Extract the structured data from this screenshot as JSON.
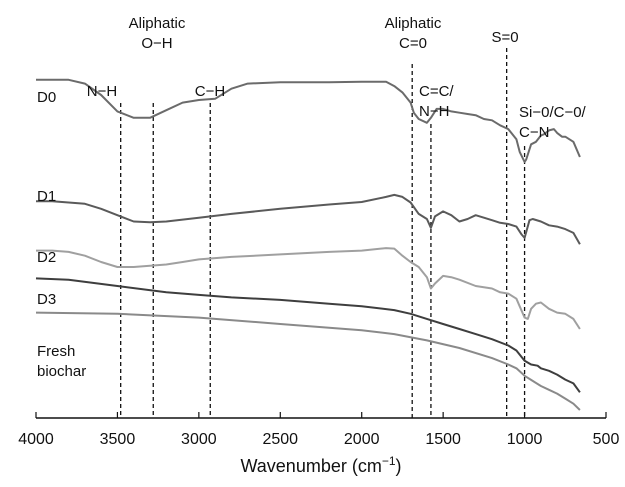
{
  "chart_data": {
    "type": "line",
    "title": "",
    "xlabel": {
      "main": "Wavenumber (cm",
      "superscript": "−1",
      "close": ")"
    },
    "ylabel": "",
    "xlim": [
      4000,
      500
    ],
    "x_reversed": true,
    "x_ticks": [
      4000,
      3500,
      3000,
      2500,
      2000,
      1500,
      1000,
      500
    ],
    "y_ticks": [],
    "grid": false,
    "annotations": [
      {
        "id": "nh",
        "x": 3480,
        "lines": [
          "N−H"
        ]
      },
      {
        "id": "oh",
        "x": 3280,
        "lines": [
          "Aliphatic",
          "O−H"
        ]
      },
      {
        "id": "ch",
        "x": 2930,
        "lines": [
          "C−H"
        ]
      },
      {
        "id": "co",
        "x": 1690,
        "lines": [
          "Aliphatic",
          "C=0"
        ]
      },
      {
        "id": "ccnh",
        "x": 1575,
        "lines": [
          "C=C/",
          "N−H"
        ]
      },
      {
        "id": "so",
        "x": 1110,
        "lines": [
          "S=0"
        ]
      },
      {
        "id": "sico",
        "x": 1000,
        "lines": [
          "Si−0/C−0/",
          "C−N"
        ]
      }
    ],
    "series": [
      {
        "name": "D0",
        "label_lines": [
          "D0"
        ],
        "color": "#6b6b6b",
        "x": [
          4000,
          3800,
          3700,
          3600,
          3500,
          3400,
          3300,
          3200,
          3100,
          3000,
          2900,
          2800,
          2700,
          2500,
          2200,
          2000,
          1850,
          1800,
          1750,
          1700,
          1680,
          1650,
          1600,
          1575,
          1540,
          1500,
          1450,
          1400,
          1350,
          1300,
          1250,
          1200,
          1150,
          1100,
          1050,
          1030,
          1000,
          990,
          960,
          930,
          900,
          880,
          850,
          820,
          800,
          770,
          750,
          700,
          660
        ],
        "y": [
          0.15,
          0.15,
          0.3,
          0.75,
          1.4,
          1.65,
          1.65,
          1.35,
          1.05,
          0.95,
          0.9,
          0.5,
          0.3,
          0.25,
          0.25,
          0.23,
          0.23,
          0.4,
          0.65,
          1.05,
          1.45,
          1.7,
          1.85,
          1.65,
          1.3,
          1.3,
          1.4,
          1.45,
          1.5,
          1.55,
          1.7,
          1.75,
          1.95,
          2.1,
          2.5,
          3.0,
          3.4,
          3.3,
          2.7,
          2.6,
          2.35,
          2.3,
          2.15,
          2.1,
          2.25,
          2.4,
          2.4,
          2.6,
          3.2
        ]
      },
      {
        "name": "D1",
        "label_lines": [
          "D1"
        ],
        "color": "#5a5a5a",
        "x": [
          4000,
          3900,
          3700,
          3600,
          3500,
          3400,
          3300,
          3200,
          3000,
          2800,
          2500,
          2200,
          2000,
          1850,
          1800,
          1750,
          1700,
          1650,
          1600,
          1575,
          1550,
          1500,
          1450,
          1400,
          1350,
          1300,
          1250,
          1200,
          1150,
          1100,
          1050,
          1020,
          1000,
          970,
          950,
          900,
          850,
          800,
          750,
          700,
          660
        ],
        "y": [
          4.95,
          4.95,
          5.05,
          5.25,
          5.5,
          5.75,
          5.78,
          5.75,
          5.6,
          5.45,
          5.25,
          5.08,
          4.98,
          4.78,
          4.7,
          4.78,
          5.0,
          5.45,
          5.65,
          6.0,
          5.55,
          5.35,
          5.5,
          5.75,
          5.65,
          5.5,
          5.6,
          5.7,
          5.8,
          5.85,
          5.95,
          6.25,
          6.4,
          5.7,
          5.65,
          5.75,
          5.9,
          5.95,
          6.05,
          6.2,
          6.65
        ]
      },
      {
        "name": "D2",
        "label_lines": [
          "D2"
        ],
        "color": "#a0a0a0",
        "x": [
          4000,
          3900,
          3800,
          3700,
          3600,
          3500,
          3400,
          3300,
          3200,
          3100,
          3000,
          2800,
          2500,
          2200,
          2000,
          1850,
          1800,
          1750,
          1700,
          1650,
          1600,
          1575,
          1550,
          1500,
          1450,
          1400,
          1300,
          1200,
          1150,
          1100,
          1050,
          1030,
          1000,
          980,
          960,
          930,
          900,
          850,
          800,
          750,
          700,
          660
        ],
        "y": [
          6.9,
          6.9,
          6.95,
          7.1,
          7.35,
          7.55,
          7.55,
          7.5,
          7.45,
          7.35,
          7.25,
          7.15,
          7.05,
          6.95,
          6.9,
          6.8,
          6.82,
          7.1,
          7.35,
          7.55,
          7.95,
          8.4,
          8.2,
          7.9,
          7.95,
          8.05,
          8.3,
          8.4,
          8.55,
          8.6,
          8.8,
          9.1,
          9.55,
          9.6,
          9.2,
          9.0,
          8.95,
          9.2,
          9.35,
          9.4,
          9.6,
          10.0
        ]
      },
      {
        "name": "D3",
        "label_lines": [
          "D3"
        ],
        "color": "#3e3e3e",
        "x": [
          4000,
          3800,
          3500,
          3200,
          3000,
          2800,
          2500,
          2200,
          2000,
          1800,
          1700,
          1600,
          1500,
          1400,
          1300,
          1200,
          1100,
          1050,
          1000,
          960,
          920,
          900,
          850,
          800,
          750,
          700,
          660
        ],
        "y": [
          8.0,
          8.05,
          8.3,
          8.55,
          8.65,
          8.75,
          8.85,
          9.0,
          9.1,
          9.25,
          9.4,
          9.6,
          9.8,
          10.0,
          10.2,
          10.4,
          10.65,
          10.85,
          11.25,
          11.4,
          11.45,
          11.55,
          11.65,
          11.8,
          12.0,
          12.15,
          12.5
        ]
      },
      {
        "name": "Fresh biochar",
        "label_lines": [
          "Fresh",
          "biochar"
        ],
        "color": "#8a8a8a",
        "x": [
          4000,
          3500,
          3000,
          2500,
          2000,
          1800,
          1600,
          1400,
          1200,
          1100,
          1050,
          1000,
          950,
          900,
          850,
          800,
          750,
          700,
          660
        ],
        "y": [
          9.35,
          9.4,
          9.55,
          9.8,
          10.05,
          10.2,
          10.45,
          10.75,
          11.15,
          11.4,
          11.55,
          11.85,
          12.05,
          12.25,
          12.4,
          12.55,
          12.75,
          12.95,
          13.2
        ]
      }
    ]
  }
}
